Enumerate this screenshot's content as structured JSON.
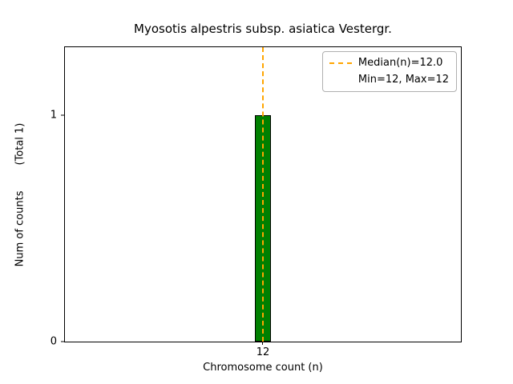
{
  "chart_data": {
    "type": "bar",
    "title": "Myosotis alpestris subsp. asiatica Vestergr.",
    "xlabel": "Chromosome count (n)",
    "ylabel": "Num of counts",
    "ylabel_secondary": "(Total 1)",
    "categories": [
      "12"
    ],
    "values": [
      1
    ],
    "ylim": [
      0,
      1.3
    ],
    "yticks": [
      0,
      1
    ],
    "ytick_labels": [
      "0",
      "1"
    ],
    "xtick_labels": [
      "12"
    ],
    "bar_color": "#008000",
    "bar_edge_color": "#000000",
    "grid": false,
    "median_line": {
      "x": 12,
      "median": 12.0,
      "color": "#FFA500",
      "style": "dashed"
    },
    "stats": {
      "min": 12,
      "max": 12,
      "median": 12.0,
      "total_counts": 1
    },
    "legend": {
      "position": "upper-right",
      "entries": [
        {
          "marker": "dashed-line",
          "color": "#FFA500",
          "label": "Median(n)=12.0"
        },
        {
          "marker": "none",
          "label": "Min=12, Max=12"
        }
      ]
    }
  }
}
